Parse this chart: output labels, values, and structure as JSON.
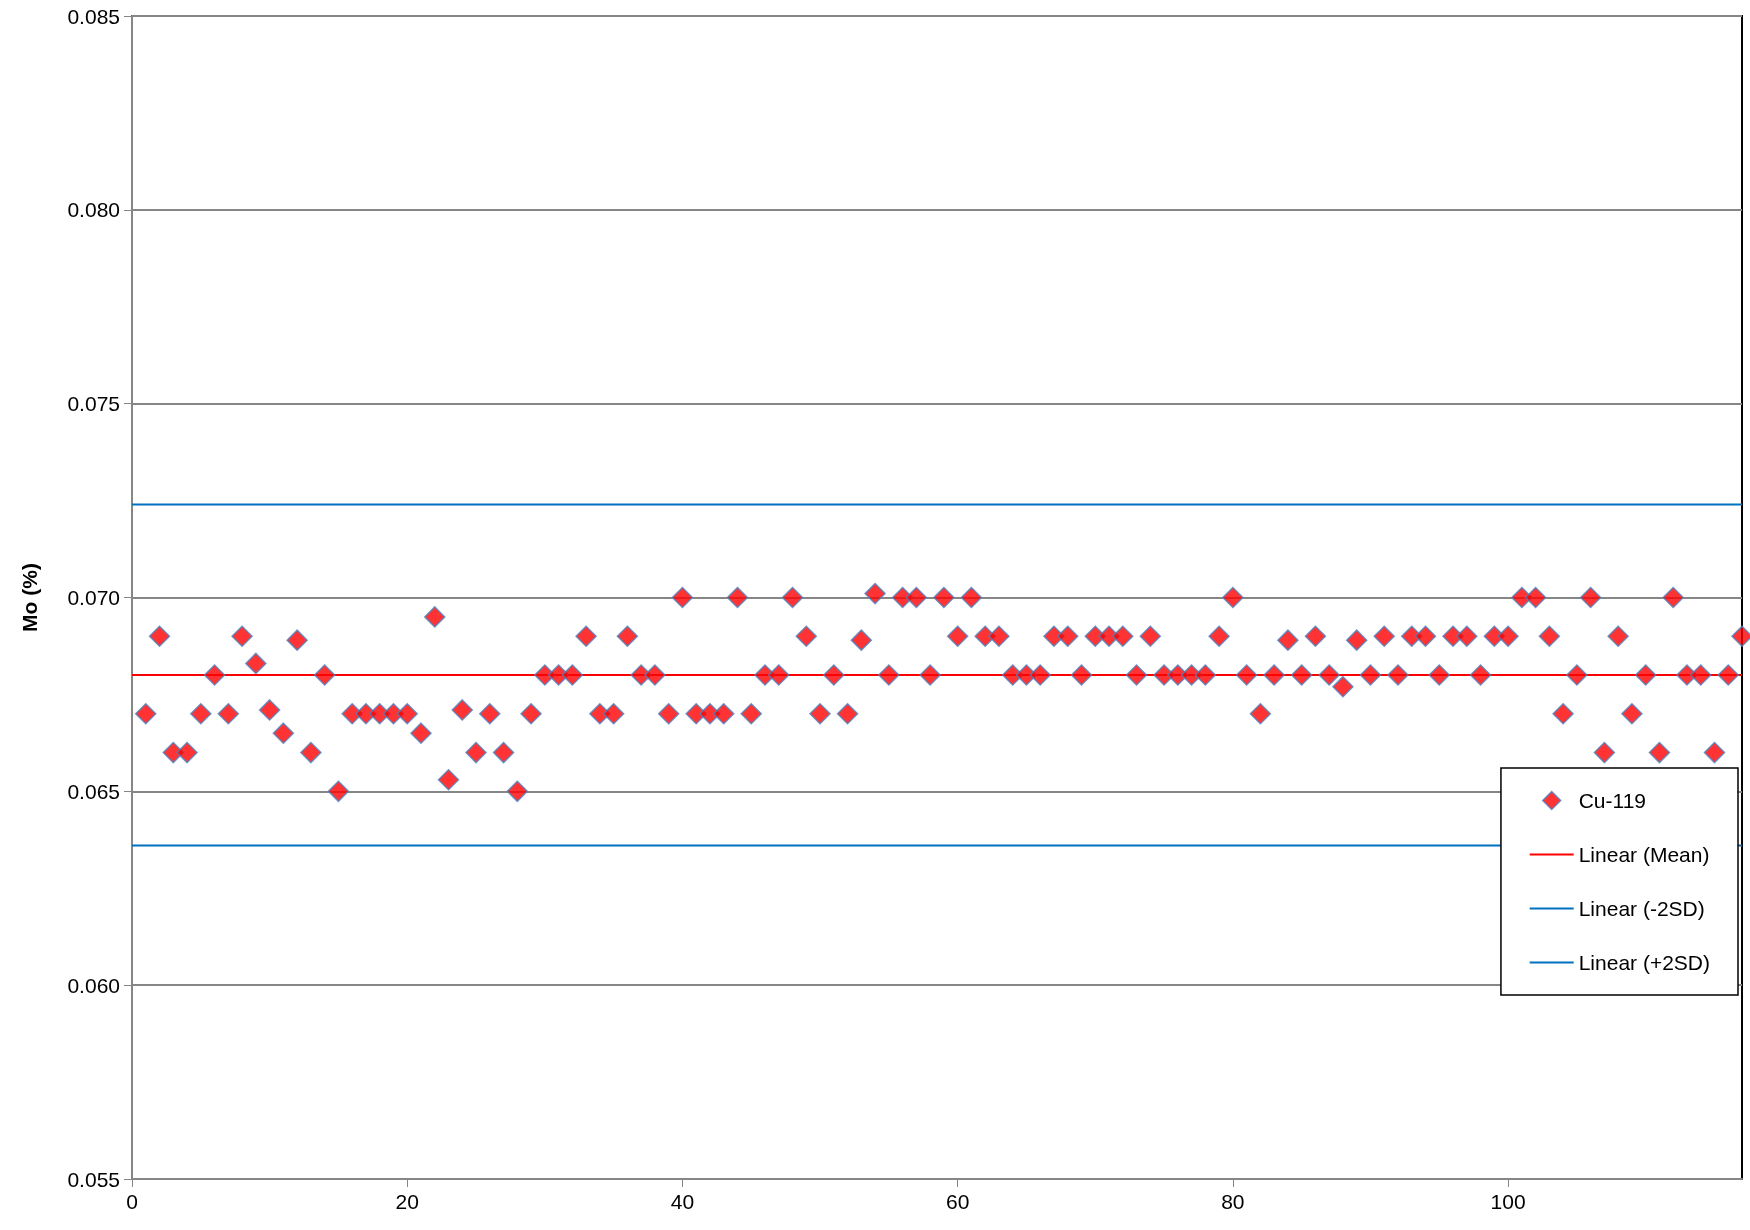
{
  "chart_data": {
    "type": "scatter",
    "ylabel": "Mo (%)",
    "xlim": [
      0,
      117
    ],
    "xticks": [
      0,
      20,
      40,
      60,
      80,
      100
    ],
    "ylim": [
      0.055,
      0.085
    ],
    "yticks": [
      {
        "value": 0.055,
        "label": "0.055"
      },
      {
        "value": 0.06,
        "label": "0.060"
      },
      {
        "value": 0.065,
        "label": "0.065"
      },
      {
        "value": 0.07,
        "label": "0.070"
      },
      {
        "value": 0.075,
        "label": "0.075"
      },
      {
        "value": 0.08,
        "label": "0.080"
      },
      {
        "value": 0.085,
        "label": "0.085"
      }
    ],
    "grid": "y",
    "legend": "bottom right",
    "series": [
      {
        "name": "Cu-119",
        "marker": "diamond",
        "color": "#ff0000",
        "x": [
          1,
          2,
          3,
          4,
          5,
          6,
          7,
          8,
          9,
          10,
          11,
          12,
          13,
          14,
          15,
          16,
          17,
          18,
          19,
          20,
          21,
          22,
          23,
          24,
          25,
          26,
          27,
          28,
          29,
          30,
          31,
          32,
          33,
          34,
          35,
          36,
          37,
          38,
          39,
          40,
          41,
          42,
          43,
          44,
          45,
          46,
          47,
          48,
          49,
          50,
          51,
          52,
          53,
          54,
          55,
          56,
          57,
          58,
          59,
          60,
          61,
          62,
          63,
          64,
          65,
          66,
          67,
          68,
          69,
          70,
          71,
          72,
          73,
          74,
          75,
          76,
          77,
          78,
          79,
          80,
          81,
          82,
          83,
          84,
          85,
          86,
          87,
          88,
          89,
          90,
          91,
          92,
          93,
          94,
          95,
          96,
          97,
          98,
          99,
          100,
          101,
          102,
          103,
          104,
          105,
          106,
          107,
          108,
          109,
          110,
          111,
          112,
          113,
          114,
          115,
          116,
          117
        ],
        "values": [
          0.067,
          0.069,
          0.066,
          0.066,
          0.067,
          0.068,
          0.067,
          0.069,
          0.0683,
          0.0671,
          0.0665,
          0.0689,
          0.066,
          0.068,
          0.065,
          0.067,
          0.067,
          0.067,
          0.067,
          0.067,
          0.0665,
          0.0695,
          0.0653,
          0.0671,
          0.066,
          0.067,
          0.066,
          0.065,
          0.067,
          0.068,
          0.068,
          0.068,
          0.069,
          0.067,
          0.067,
          0.069,
          0.068,
          0.068,
          0.067,
          0.07,
          0.067,
          0.067,
          0.067,
          0.07,
          0.067,
          0.068,
          0.068,
          0.07,
          0.069,
          0.067,
          0.068,
          0.067,
          0.0689,
          0.0701,
          0.068,
          0.07,
          0.07,
          0.068,
          0.07,
          0.069,
          0.07,
          0.069,
          0.069,
          0.068,
          0.068,
          0.068,
          0.069,
          0.069,
          0.068,
          0.069,
          0.069,
          0.069,
          0.068,
          0.069,
          0.068,
          0.068,
          0.068,
          0.068,
          0.069,
          0.07,
          0.068,
          0.067,
          0.068,
          0.0689,
          0.068,
          0.069,
          0.068,
          0.0677,
          0.0689,
          0.068,
          0.069,
          0.068,
          0.069,
          0.069,
          0.068,
          0.069,
          0.069,
          0.068,
          0.069,
          0.069,
          0.07,
          0.07,
          0.069,
          0.067,
          0.068,
          0.07,
          0.066,
          0.069,
          0.067,
          0.068,
          0.066,
          0.07,
          0.068,
          0.068,
          0.066,
          0.068,
          0.069
        ]
      },
      {
        "name": "Linear (Mean)",
        "type": "line",
        "marker": "none",
        "color": "#ff0000",
        "x": [
          0,
          117
        ],
        "values": [
          0.068,
          0.068
        ]
      },
      {
        "name": "Linear (-2SD)",
        "type": "line",
        "marker": "none",
        "color": "#0070c0",
        "x": [
          0,
          117
        ],
        "values": [
          0.0636,
          0.0636
        ]
      },
      {
        "name": "Linear (+2SD)",
        "type": "line",
        "marker": "none",
        "color": "#0070c0",
        "x": [
          0,
          117
        ],
        "values": [
          0.0724,
          0.0724
        ]
      }
    ]
  }
}
